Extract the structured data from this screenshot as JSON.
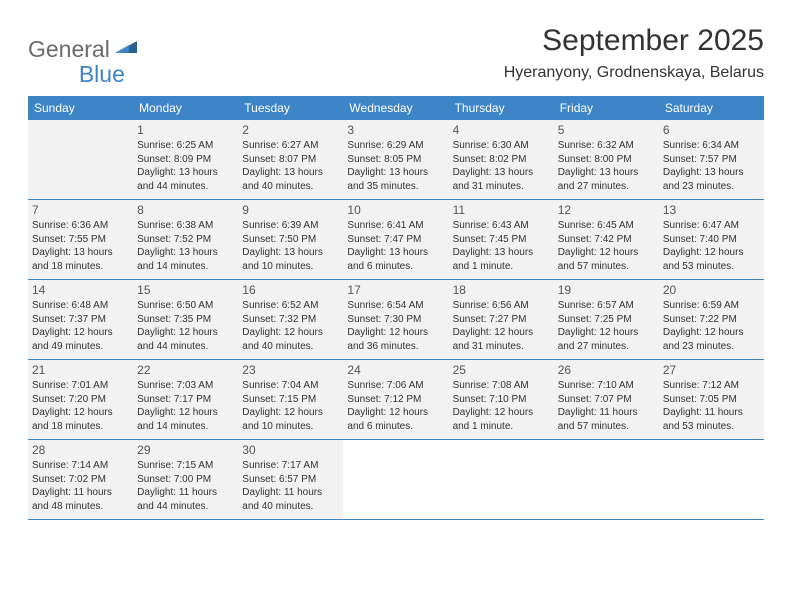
{
  "logo": {
    "text1": "General",
    "text2": "Blue"
  },
  "title": "September 2025",
  "location": "Hyeranyony, Grodnenskaya, Belarus",
  "colors": {
    "header_bg": "#3d85c6",
    "header_text": "#ffffff",
    "shaded_bg": "#f2f2f2",
    "border": "#3d85c6",
    "logo_gray": "#6b6b6b",
    "logo_blue": "#3d85c6"
  },
  "day_headers": [
    "Sunday",
    "Monday",
    "Tuesday",
    "Wednesday",
    "Thursday",
    "Friday",
    "Saturday"
  ],
  "weeks": [
    [
      {
        "shaded": true
      },
      {
        "num": "1",
        "sunrise": "Sunrise: 6:25 AM",
        "sunset": "Sunset: 8:09 PM",
        "d1": "Daylight: 13 hours",
        "d2": "and 44 minutes.",
        "shaded": true
      },
      {
        "num": "2",
        "sunrise": "Sunrise: 6:27 AM",
        "sunset": "Sunset: 8:07 PM",
        "d1": "Daylight: 13 hours",
        "d2": "and 40 minutes.",
        "shaded": true
      },
      {
        "num": "3",
        "sunrise": "Sunrise: 6:29 AM",
        "sunset": "Sunset: 8:05 PM",
        "d1": "Daylight: 13 hours",
        "d2": "and 35 minutes.",
        "shaded": true
      },
      {
        "num": "4",
        "sunrise": "Sunrise: 6:30 AM",
        "sunset": "Sunset: 8:02 PM",
        "d1": "Daylight: 13 hours",
        "d2": "and 31 minutes.",
        "shaded": true
      },
      {
        "num": "5",
        "sunrise": "Sunrise: 6:32 AM",
        "sunset": "Sunset: 8:00 PM",
        "d1": "Daylight: 13 hours",
        "d2": "and 27 minutes.",
        "shaded": true
      },
      {
        "num": "6",
        "sunrise": "Sunrise: 6:34 AM",
        "sunset": "Sunset: 7:57 PM",
        "d1": "Daylight: 13 hours",
        "d2": "and 23 minutes.",
        "shaded": true
      }
    ],
    [
      {
        "num": "7",
        "sunrise": "Sunrise: 6:36 AM",
        "sunset": "Sunset: 7:55 PM",
        "d1": "Daylight: 13 hours",
        "d2": "and 18 minutes.",
        "shaded": true
      },
      {
        "num": "8",
        "sunrise": "Sunrise: 6:38 AM",
        "sunset": "Sunset: 7:52 PM",
        "d1": "Daylight: 13 hours",
        "d2": "and 14 minutes.",
        "shaded": true
      },
      {
        "num": "9",
        "sunrise": "Sunrise: 6:39 AM",
        "sunset": "Sunset: 7:50 PM",
        "d1": "Daylight: 13 hours",
        "d2": "and 10 minutes.",
        "shaded": true
      },
      {
        "num": "10",
        "sunrise": "Sunrise: 6:41 AM",
        "sunset": "Sunset: 7:47 PM",
        "d1": "Daylight: 13 hours",
        "d2": "and 6 minutes.",
        "shaded": true
      },
      {
        "num": "11",
        "sunrise": "Sunrise: 6:43 AM",
        "sunset": "Sunset: 7:45 PM",
        "d1": "Daylight: 13 hours",
        "d2": "and 1 minute.",
        "shaded": true
      },
      {
        "num": "12",
        "sunrise": "Sunrise: 6:45 AM",
        "sunset": "Sunset: 7:42 PM",
        "d1": "Daylight: 12 hours",
        "d2": "and 57 minutes.",
        "shaded": true
      },
      {
        "num": "13",
        "sunrise": "Sunrise: 6:47 AM",
        "sunset": "Sunset: 7:40 PM",
        "d1": "Daylight: 12 hours",
        "d2": "and 53 minutes.",
        "shaded": true
      }
    ],
    [
      {
        "num": "14",
        "sunrise": "Sunrise: 6:48 AM",
        "sunset": "Sunset: 7:37 PM",
        "d1": "Daylight: 12 hours",
        "d2": "and 49 minutes.",
        "shaded": true
      },
      {
        "num": "15",
        "sunrise": "Sunrise: 6:50 AM",
        "sunset": "Sunset: 7:35 PM",
        "d1": "Daylight: 12 hours",
        "d2": "and 44 minutes.",
        "shaded": true
      },
      {
        "num": "16",
        "sunrise": "Sunrise: 6:52 AM",
        "sunset": "Sunset: 7:32 PM",
        "d1": "Daylight: 12 hours",
        "d2": "and 40 minutes.",
        "shaded": true
      },
      {
        "num": "17",
        "sunrise": "Sunrise: 6:54 AM",
        "sunset": "Sunset: 7:30 PM",
        "d1": "Daylight: 12 hours",
        "d2": "and 36 minutes.",
        "shaded": true
      },
      {
        "num": "18",
        "sunrise": "Sunrise: 6:56 AM",
        "sunset": "Sunset: 7:27 PM",
        "d1": "Daylight: 12 hours",
        "d2": "and 31 minutes.",
        "shaded": true
      },
      {
        "num": "19",
        "sunrise": "Sunrise: 6:57 AM",
        "sunset": "Sunset: 7:25 PM",
        "d1": "Daylight: 12 hours",
        "d2": "and 27 minutes.",
        "shaded": true
      },
      {
        "num": "20",
        "sunrise": "Sunrise: 6:59 AM",
        "sunset": "Sunset: 7:22 PM",
        "d1": "Daylight: 12 hours",
        "d2": "and 23 minutes.",
        "shaded": true
      }
    ],
    [
      {
        "num": "21",
        "sunrise": "Sunrise: 7:01 AM",
        "sunset": "Sunset: 7:20 PM",
        "d1": "Daylight: 12 hours",
        "d2": "and 18 minutes.",
        "shaded": true
      },
      {
        "num": "22",
        "sunrise": "Sunrise: 7:03 AM",
        "sunset": "Sunset: 7:17 PM",
        "d1": "Daylight: 12 hours",
        "d2": "and 14 minutes.",
        "shaded": true
      },
      {
        "num": "23",
        "sunrise": "Sunrise: 7:04 AM",
        "sunset": "Sunset: 7:15 PM",
        "d1": "Daylight: 12 hours",
        "d2": "and 10 minutes.",
        "shaded": true
      },
      {
        "num": "24",
        "sunrise": "Sunrise: 7:06 AM",
        "sunset": "Sunset: 7:12 PM",
        "d1": "Daylight: 12 hours",
        "d2": "and 6 minutes.",
        "shaded": true
      },
      {
        "num": "25",
        "sunrise": "Sunrise: 7:08 AM",
        "sunset": "Sunset: 7:10 PM",
        "d1": "Daylight: 12 hours",
        "d2": "and 1 minute.",
        "shaded": true
      },
      {
        "num": "26",
        "sunrise": "Sunrise: 7:10 AM",
        "sunset": "Sunset: 7:07 PM",
        "d1": "Daylight: 11 hours",
        "d2": "and 57 minutes.",
        "shaded": true
      },
      {
        "num": "27",
        "sunrise": "Sunrise: 7:12 AM",
        "sunset": "Sunset: 7:05 PM",
        "d1": "Daylight: 11 hours",
        "d2": "and 53 minutes.",
        "shaded": true
      }
    ],
    [
      {
        "num": "28",
        "sunrise": "Sunrise: 7:14 AM",
        "sunset": "Sunset: 7:02 PM",
        "d1": "Daylight: 11 hours",
        "d2": "and 48 minutes.",
        "shaded": true
      },
      {
        "num": "29",
        "sunrise": "Sunrise: 7:15 AM",
        "sunset": "Sunset: 7:00 PM",
        "d1": "Daylight: 11 hours",
        "d2": "and 44 minutes.",
        "shaded": true
      },
      {
        "num": "30",
        "sunrise": "Sunrise: 7:17 AM",
        "sunset": "Sunset: 6:57 PM",
        "d1": "Daylight: 11 hours",
        "d2": "and 40 minutes.",
        "shaded": true
      },
      {},
      {},
      {},
      {}
    ]
  ]
}
